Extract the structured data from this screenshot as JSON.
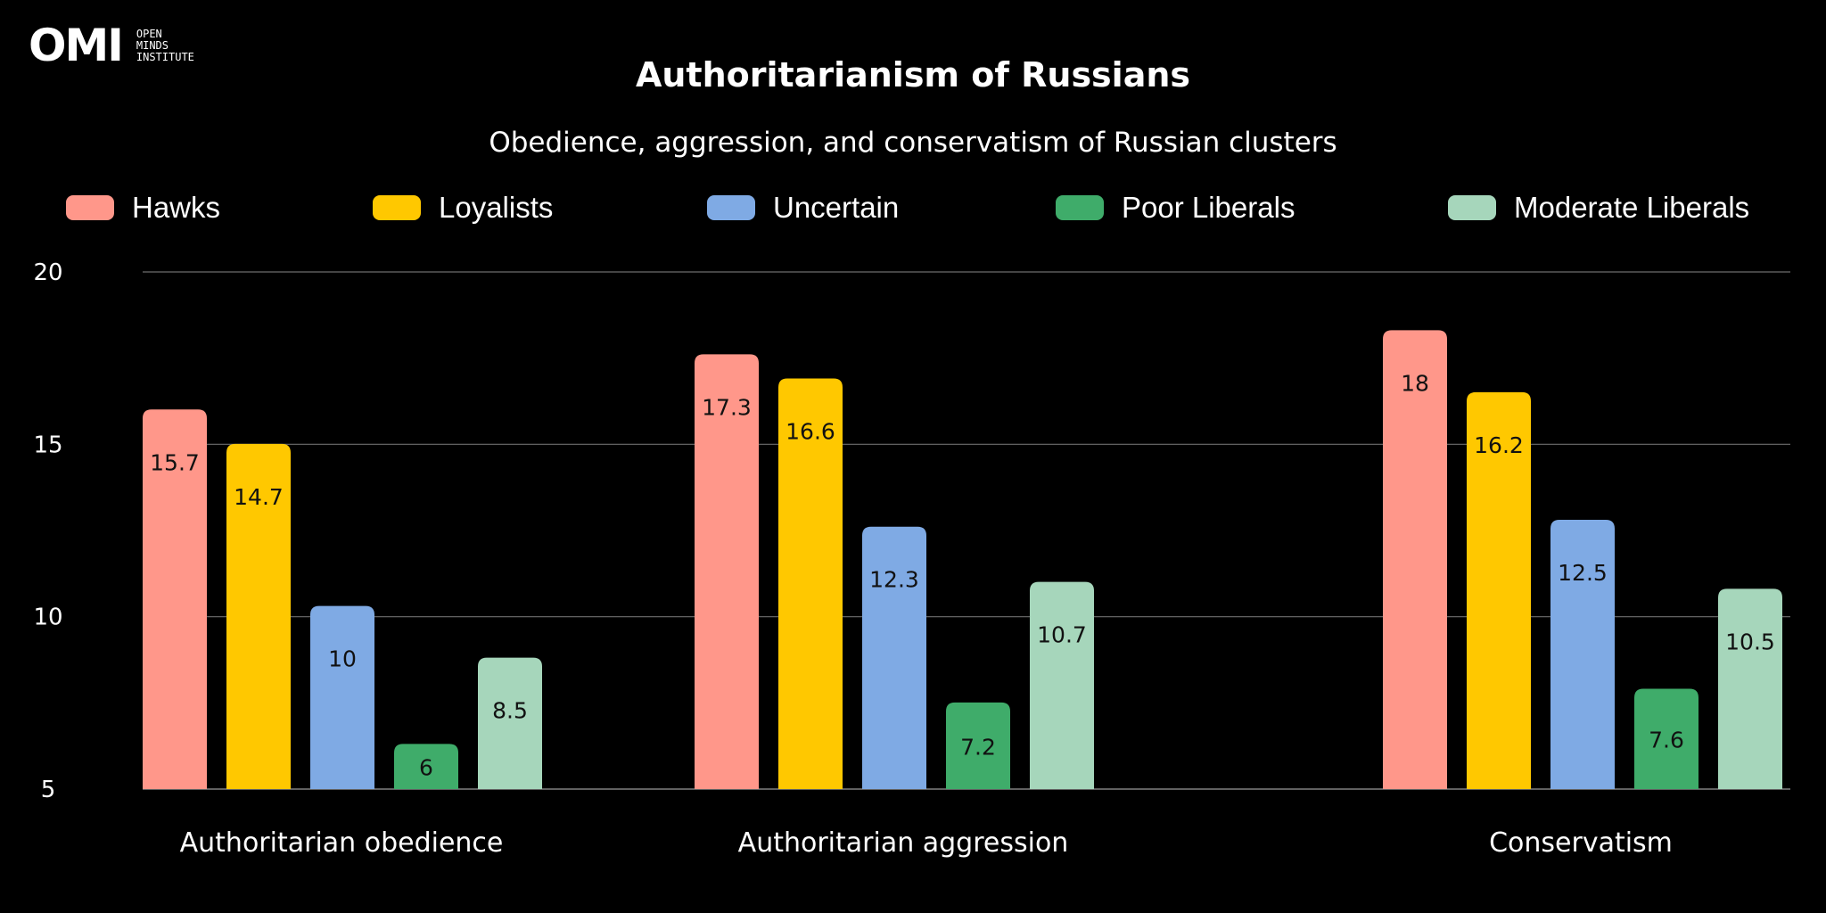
{
  "logo": {
    "mark": "OMI",
    "lines": [
      "OPEN",
      "MINDS",
      "INSTITUTE"
    ]
  },
  "colors": {
    "background": "#000000",
    "text": "#ffffff",
    "grid": "#6e6e6e",
    "series": [
      "#ff978a",
      "#ffc800",
      "#7faae4",
      "#3fac6a",
      "#a6d6bb"
    ]
  },
  "chart_data": {
    "type": "bar",
    "title": "Authoritarianism of Russians",
    "subtitle": "Obedience, aggression, and conservatism of Russian clusters",
    "categories": [
      "Authoritarian obedience",
      "Authoritarian aggression",
      "Conservatism"
    ],
    "series": [
      {
        "name": "Hawks",
        "values": [
          15.7,
          17.3,
          18
        ]
      },
      {
        "name": "Loyalists",
        "values": [
          14.7,
          16.6,
          16.2
        ]
      },
      {
        "name": "Uncertain",
        "values": [
          10,
          12.3,
          12.5
        ]
      },
      {
        "name": "Poor Liberals",
        "values": [
          6,
          7.2,
          7.6
        ]
      },
      {
        "name": "Moderate Liberals",
        "values": [
          8.5,
          10.7,
          10.5
        ]
      }
    ],
    "ylim": [
      5,
      20
    ],
    "yticks": [
      5,
      10,
      15,
      20
    ],
    "grid": true,
    "legend": "top"
  }
}
